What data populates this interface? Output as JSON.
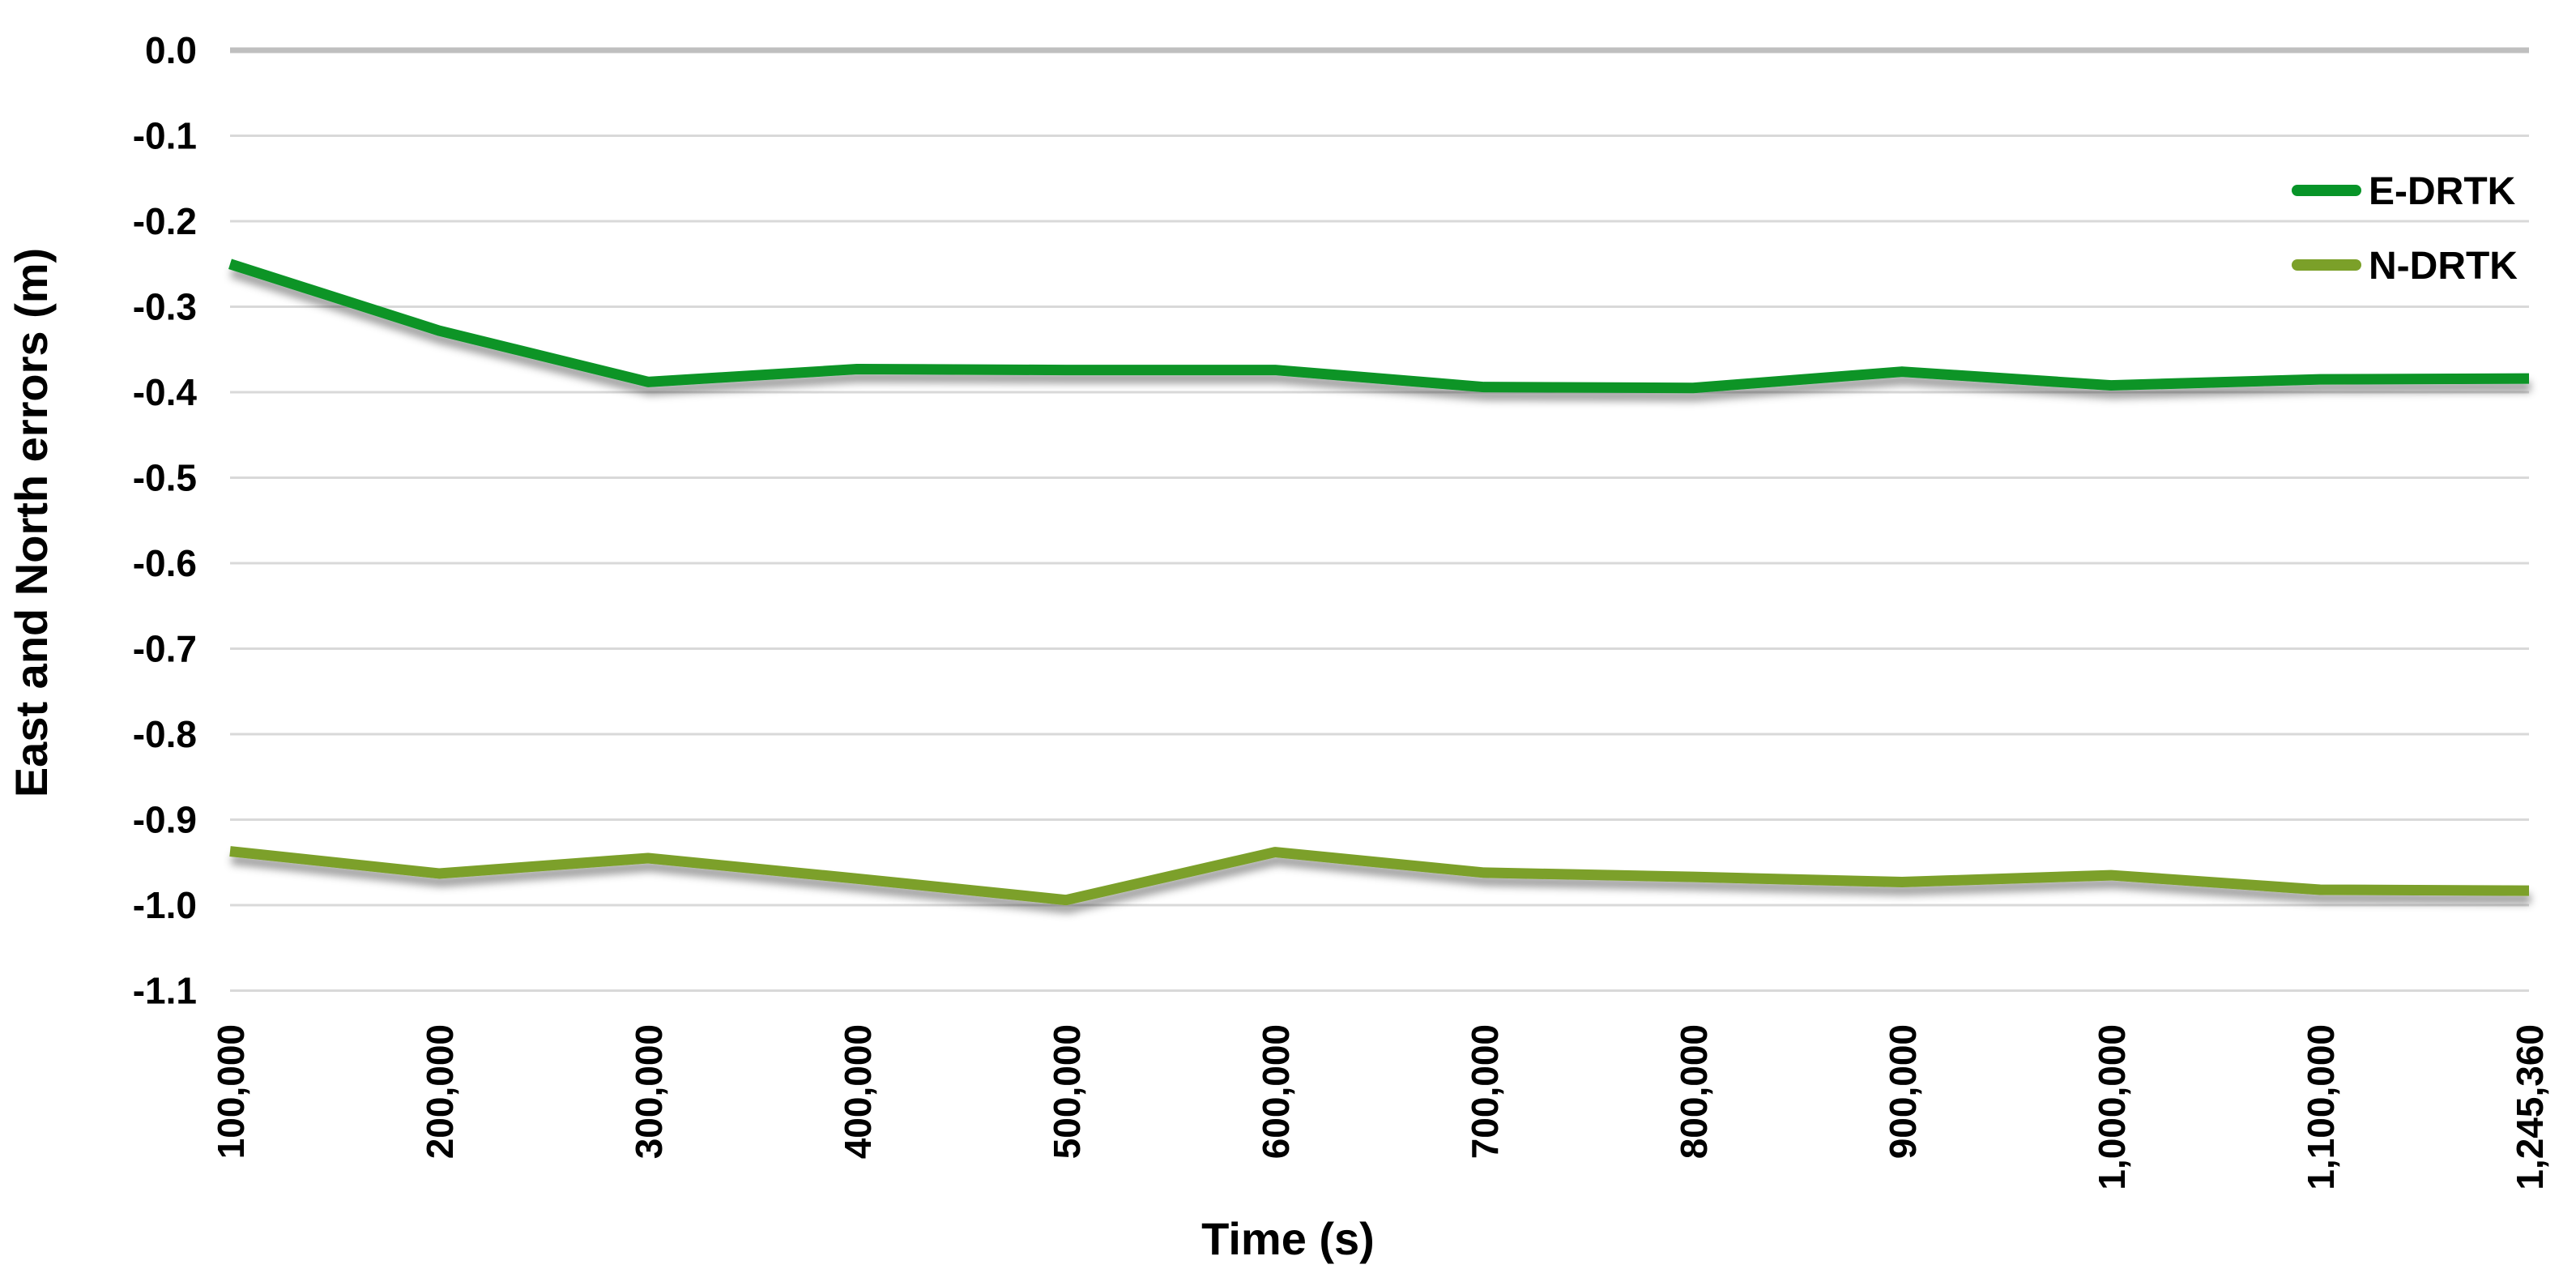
{
  "chart_data": {
    "type": "line",
    "title": "",
    "xlabel": "Time (s)",
    "ylabel": "East and North errors (m)",
    "categories": [
      "100,000",
      "200,000",
      "300,000",
      "400,000",
      "500,000",
      "600,000",
      "700,000",
      "800,000",
      "900,000",
      "1,000,000",
      "1,100,000",
      "1,245,360"
    ],
    "series": [
      {
        "name": "E-DRTK",
        "color": "#079428",
        "values": [
          -0.25,
          -0.328,
          -0.388,
          -0.373,
          -0.374,
          -0.374,
          -0.394,
          -0.395,
          -0.376,
          -0.392,
          -0.385,
          -0.384
        ]
      },
      {
        "name": "N-DRTK",
        "color": "#7BA029",
        "values": [
          -0.937,
          -0.963,
          -0.945,
          -0.969,
          -0.994,
          -0.938,
          -0.962,
          -0.967,
          -0.973,
          -0.965,
          -0.982,
          -0.983
        ]
      }
    ],
    "ylim": [
      -1.1,
      0.0
    ],
    "ytick_step": 0.1,
    "ytick_labels": [
      "0.0",
      "-0.1",
      "-0.2",
      "-0.3",
      "-0.4",
      "-0.5",
      "-0.6",
      "-0.7",
      "-0.8",
      "-0.9",
      "-1.0",
      "-1.1"
    ],
    "grid": true,
    "gridline_color": "#d9d9d9",
    "zero_line_color": "#bfbfbf",
    "legend_position": "right-top",
    "legend_entries": [
      "E-DRTK",
      "N-DRTK"
    ]
  }
}
